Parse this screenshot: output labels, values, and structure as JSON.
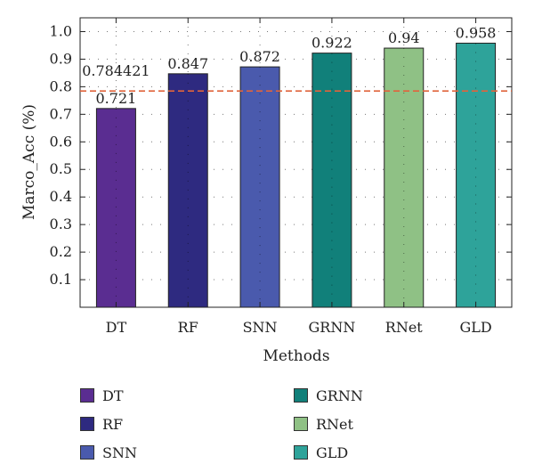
{
  "chart_data": {
    "type": "bar",
    "categories": [
      "DT",
      "RF",
      "SNN",
      "GRNN",
      "RNet",
      "GLD"
    ],
    "values": [
      0.721,
      0.847,
      0.872,
      0.922,
      0.94,
      0.958
    ],
    "value_labels": [
      "0.721",
      "0.847",
      "0.872",
      "0.922",
      "0.94",
      "0.958"
    ],
    "colors": [
      "#5a2d91",
      "#2e2a80",
      "#4a5aad",
      "#11807a",
      "#8fc185",
      "#2ea39a"
    ],
    "reference_line": {
      "value": 0.784421,
      "label": "0.784421",
      "color": "#e0643c",
      "style": "dashed"
    },
    "xlabel": "Methods",
    "ylabel": "Marco_Acc (%)",
    "ylim": [
      0,
      1.05
    ],
    "yticks": [
      0.1,
      0.2,
      0.3,
      0.4,
      0.5,
      0.6,
      0.7,
      0.8,
      0.9,
      1.0
    ],
    "ytick_labels": [
      "0.1",
      "0.2",
      "0.3",
      "0.4",
      "0.5",
      "0.6",
      "0.7",
      "0.8",
      "0.9",
      "1.0"
    ],
    "grid": true,
    "legend": {
      "placement": "bottom",
      "entries": [
        "DT",
        "RF",
        "SNN",
        "GRNN",
        "RNet",
        "GLD"
      ]
    }
  }
}
